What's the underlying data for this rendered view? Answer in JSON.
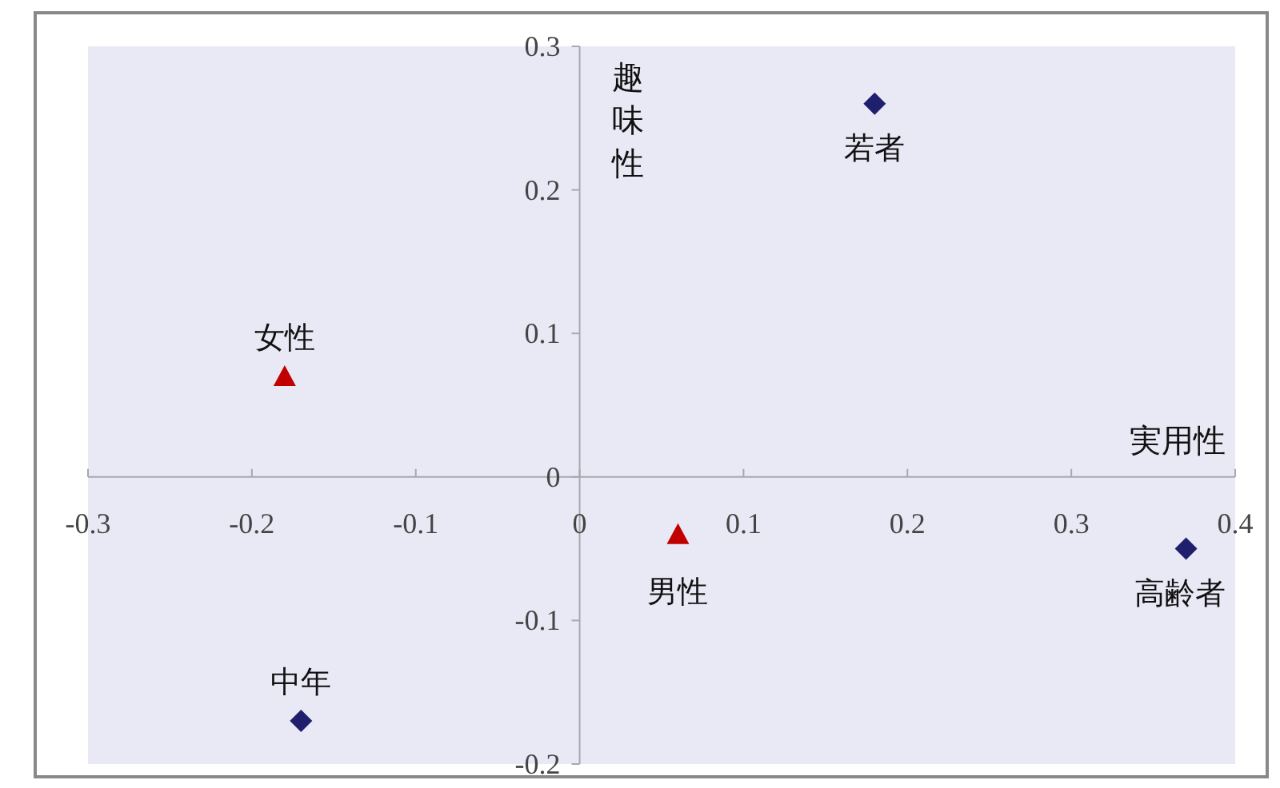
{
  "chart_data": {
    "type": "scatter",
    "xlabel": "実用性",
    "ylabel": "趣味性",
    "xlim": [
      -0.3,
      0.4
    ],
    "ylim": [
      -0.2,
      0.3
    ],
    "xticks": [
      -0.3,
      -0.2,
      -0.1,
      {
        "value": 0,
        "label": "0"
      },
      0.1,
      0.2,
      0.3,
      0.4
    ],
    "yticks": [
      -0.2,
      -0.1,
      {
        "value": 0,
        "label": "0"
      },
      0.1,
      0.2,
      0.3
    ],
    "grid": false,
    "series": [
      {
        "color": "#1f1f6e",
        "marker": "diamond",
        "x": [
          0.18,
          0.37,
          -0.17
        ],
        "values": [
          0.26,
          -0.05,
          -0.17
        ]
      },
      {
        "color": "#c00000",
        "marker": "triangle",
        "x": [
          -0.18,
          0.06
        ],
        "values": [
          0.07,
          -0.04
        ]
      }
    ],
    "annotations": [
      {
        "text": "若者",
        "x": 0.18,
        "y": 0.26
      },
      {
        "text": "高齢者",
        "x": 0.37,
        "y": -0.05
      },
      {
        "text": "中年",
        "x": -0.17,
        "y": -0.17
      },
      {
        "text": "女性",
        "x": -0.18,
        "y": 0.07
      },
      {
        "text": "男性",
        "x": 0.06,
        "y": -0.04
      }
    ]
  }
}
